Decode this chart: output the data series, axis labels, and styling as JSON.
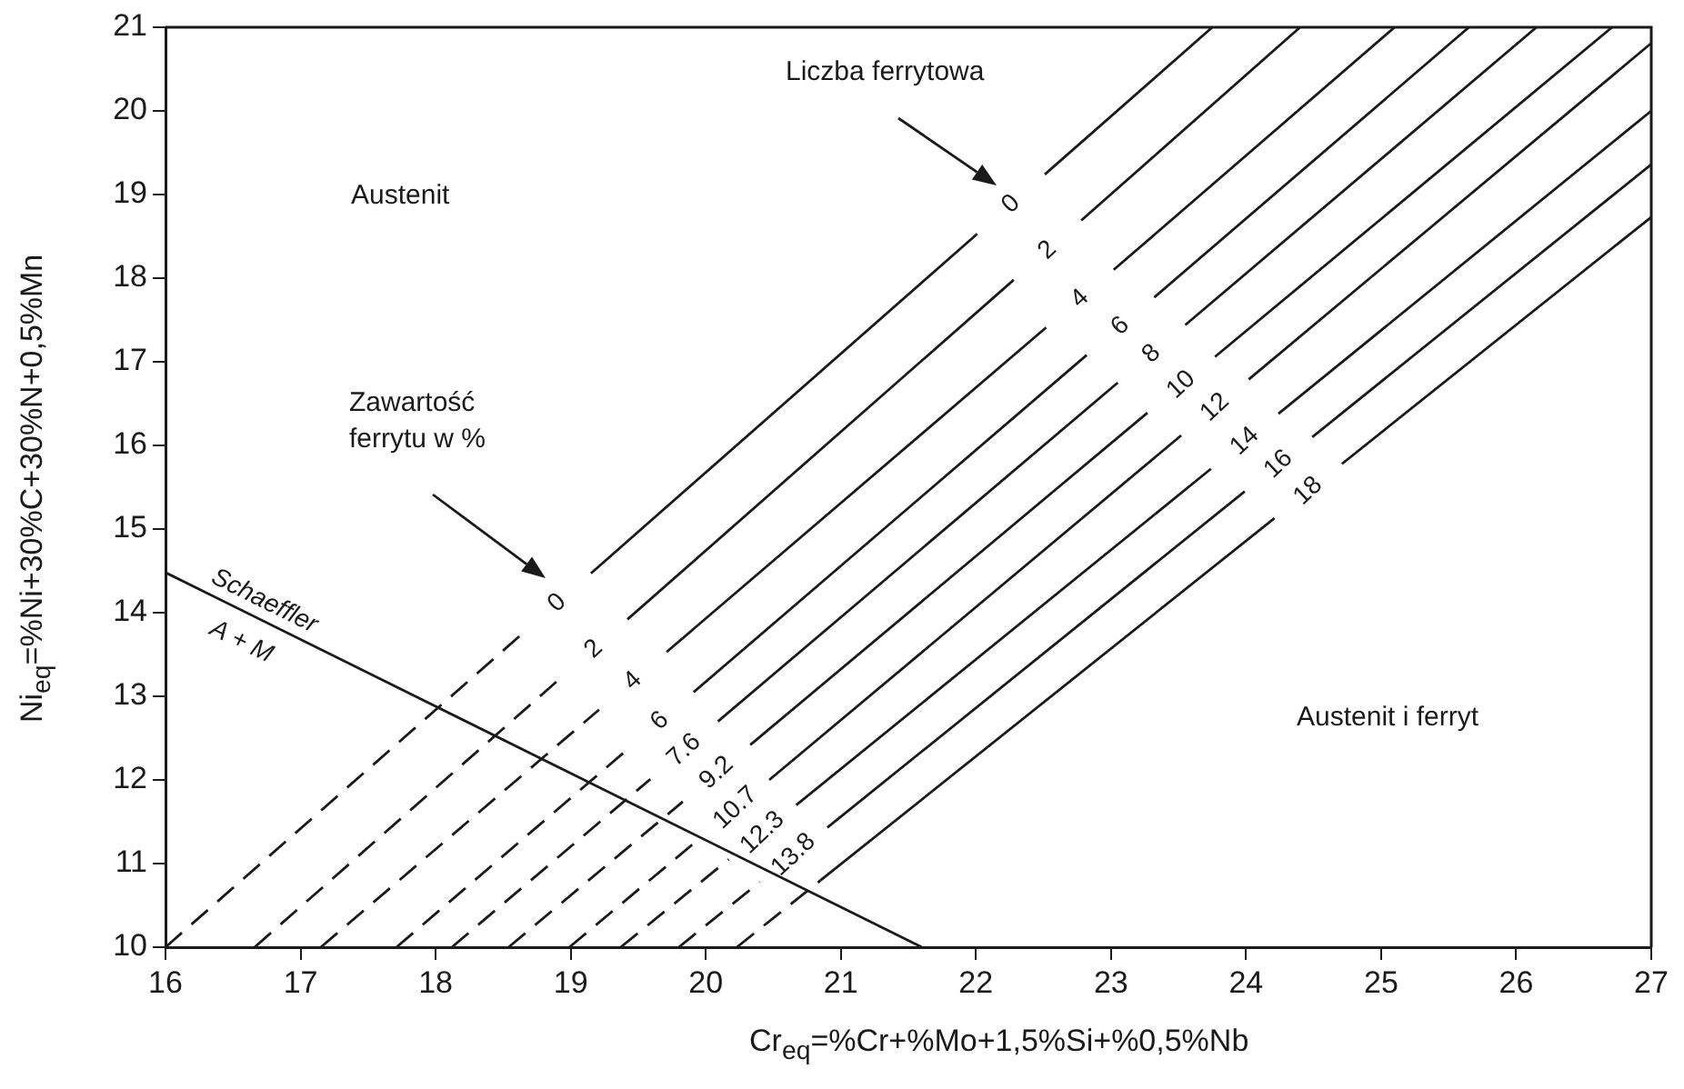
{
  "chart_data": {
    "type": "line",
    "xlabel": "Cr$_{eq}$=%Cr+%Mo+1,5%Si+%0,5%Nb",
    "ylabel": "Ni$_{eq}$=%Ni+30%C+30%N+0,5%Mn",
    "xlim": [
      16,
      27
    ],
    "ylim": [
      10,
      21
    ],
    "xticks": [
      16,
      17,
      18,
      19,
      20,
      21,
      22,
      23,
      24,
      25,
      26,
      27
    ],
    "yticks": [
      10,
      11,
      12,
      13,
      14,
      15,
      16,
      17,
      18,
      19,
      20,
      21
    ],
    "grid": false,
    "legend": false,
    "marker": "none",
    "series": [
      {
        "color": "#1a1a1a",
        "line_style": "dashed",
        "x": [
          16,
          18.65
        ],
        "values": [
          10,
          13.76
        ]
      },
      {
        "color": "#1a1a1a",
        "line_style": "solid",
        "x": [
          19.15,
          22.01,
          22.31,
          22.51,
          23.75
        ],
        "values": [
          14.47,
          18.53,
          null,
          19.24,
          21
        ]
      },
      {
        "color": "#1a1a1a",
        "line_style": "dashed",
        "x": [
          16.66,
          18.92
        ],
        "values": [
          10,
          13.21
        ]
      },
      {
        "color": "#1a1a1a",
        "line_style": "solid",
        "x": [
          19.42,
          22.28,
          22.58,
          22.78,
          24.4
        ],
        "values": [
          13.92,
          17.98,
          null,
          18.69,
          21
        ]
      },
      {
        "color": "#1a1a1a",
        "line_style": "dashed",
        "x": [
          17.15,
          19.21
        ],
        "values": [
          10,
          12.84
        ]
      },
      {
        "color": "#1a1a1a",
        "line_style": "solid",
        "x": [
          19.71,
          22.52,
          22.82,
          23.02,
          25.1
        ],
        "values": [
          13.53,
          17.41,
          null,
          18.1,
          21
        ]
      },
      {
        "color": "#1a1a1a",
        "line_style": "dashed",
        "x": [
          17.71,
          19.41
        ],
        "values": [
          10,
          12.35
        ]
      },
      {
        "color": "#1a1a1a",
        "line_style": "solid",
        "x": [
          19.91,
          22.82,
          23.12,
          23.32,
          25.65
        ],
        "values": [
          13.05,
          17.08,
          null,
          17.77,
          21
        ]
      },
      {
        "color": "#1a1a1a",
        "line_style": "dashed",
        "x": [
          18.12,
          19.59
        ],
        "values": [
          10,
          12.01
        ]
      },
      {
        "color": "#1a1a1a",
        "line_style": "solid",
        "x": [
          20.09,
          23.05,
          23.35,
          23.55,
          26.15
        ],
        "values": [
          12.7,
          16.75,
          null,
          17.44,
          21
        ]
      },
      {
        "color": "#1a1a1a",
        "line_style": "dashed",
        "x": [
          18.54,
          19.83
        ],
        "values": [
          10,
          11.74
        ]
      },
      {
        "color": "#1a1a1a",
        "line_style": "solid",
        "x": [
          20.33,
          23.27,
          23.57,
          23.77,
          26.71
        ],
        "values": [
          12.42,
          16.39,
          null,
          17.06,
          21
        ]
      },
      {
        "color": "#1a1a1a",
        "line_style": "dashed",
        "x": [
          18.99,
          19.97
        ],
        "values": [
          10,
          11.32
        ]
      },
      {
        "color": "#1a1a1a",
        "line_style": "solid",
        "x": [
          20.47,
          23.52,
          23.82,
          24.02,
          27
        ],
        "values": [
          12,
          16.12,
          null,
          16.79,
          20.81
        ]
      },
      {
        "color": "#1a1a1a",
        "line_style": "dashed",
        "x": [
          19.37,
          20.17
        ],
        "values": [
          10,
          11.05
        ]
      },
      {
        "color": "#1a1a1a",
        "line_style": "solid",
        "x": [
          20.67,
          23.74,
          24.04,
          24.24,
          27
        ],
        "values": [
          11.7,
          15.72,
          null,
          16.38,
          20
        ]
      },
      {
        "color": "#1a1a1a",
        "line_style": "dashed",
        "x": [
          19.8,
          20.4
        ],
        "values": [
          10,
          10.78
        ]
      },
      {
        "color": "#1a1a1a",
        "line_style": "solid",
        "x": [
          20.9,
          23.99,
          24.29,
          24.49,
          27
        ],
        "values": [
          11.43,
          15.45,
          null,
          16.1,
          19.36
        ]
      },
      {
        "color": "#1a1a1a",
        "line_style": "dashed",
        "x": [
          20.23,
          20.85
        ],
        "values": [
          10,
          10.8
        ]
      },
      {
        "color": "#1a1a1a",
        "line_style": "solid",
        "x": [
          20.85,
          24.21,
          24.51,
          24.71,
          27
        ],
        "values": [
          10.8,
          15.13,
          null,
          15.78,
          18.73
        ]
      },
      {
        "name": "Schaeffler",
        "color": "#1a1a1a",
        "line_style": "solid",
        "x": [
          16,
          21.6
        ],
        "values": [
          14.48,
          10
        ]
      }
    ],
    "annotations": [
      "Austenit",
      "Austenit i ferryt",
      "Liczba ferrytowa",
      "Zawartość ferrytu w %",
      "A + M",
      {
        "text": "0",
        "x": 19.15,
        "y": 14.47
      },
      {
        "text": "2",
        "x": 19.42,
        "y": 13.92
      },
      {
        "text": "4",
        "x": 19.71,
        "y": 13.53
      },
      {
        "text": "6",
        "x": 19.91,
        "y": 13.05
      },
      {
        "text": "7.6",
        "x": 20.09,
        "y": 12.7
      },
      {
        "text": "9.2",
        "x": 20.33,
        "y": 12.42
      },
      {
        "text": "10.7",
        "x": 20.47,
        "y": 12
      },
      {
        "text": "12.3",
        "x": 20.67,
        "y": 11.7
      },
      {
        "text": "13.8",
        "x": 20.9,
        "y": 11.43
      },
      {
        "text": "0",
        "x": 22.01,
        "y": 18.53
      },
      {
        "text": "2",
        "x": 22.28,
        "y": 17.98
      },
      {
        "text": "4",
        "x": 22.52,
        "y": 17.41
      },
      {
        "text": "6",
        "x": 22.82,
        "y": 17.08
      },
      {
        "text": "8",
        "x": 23.05,
        "y": 16.75
      },
      {
        "text": "10",
        "x": 23.27,
        "y": 16.39
      },
      {
        "text": "12",
        "x": 23.52,
        "y": 16.12
      },
      {
        "text": "14",
        "x": 23.74,
        "y": 15.72
      },
      {
        "text": "16",
        "x": 23.99,
        "y": 15.45
      },
      {
        "text": "18",
        "x": 24.21,
        "y": 15.13
      }
    ]
  }
}
